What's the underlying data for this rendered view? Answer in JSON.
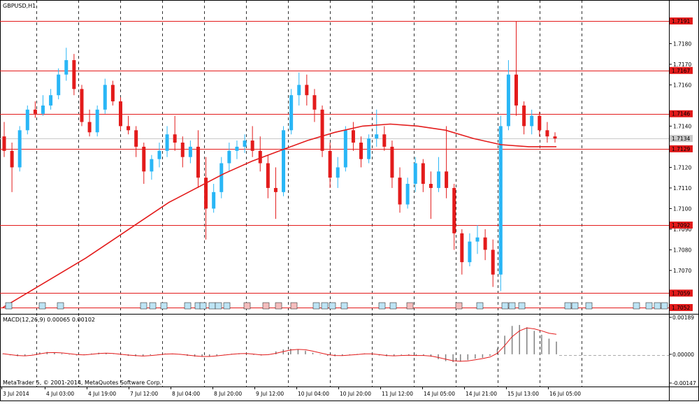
{
  "window": {
    "symbol_title": "GBPUSD,H1",
    "macd_title": "MACD(12,26,9) 0.00065 0.00102",
    "copyright": "MetaTrader 5, © 2001-2014, MetaQuotes Software Corp."
  },
  "colors": {
    "bull": "#29b6f6",
    "bear": "#e31b1b",
    "ma": "#e31b1b",
    "level_line": "#e31b1b",
    "grid": "#000000",
    "macd_hist": "#808080",
    "macd_signal": "#e31b1b",
    "event_label_blue": "#bde4f4",
    "event_label_red": "#f4bdbd"
  },
  "icons": [
    "price-label-tag",
    "event-marker-tag"
  ],
  "price_axis": {
    "labels": [
      "1.7180",
      "1.7170",
      "1.7160",
      "1.7140",
      "1.7120",
      "1.7110",
      "1.7100",
      "1.7090",
      "1.7080",
      "1.7070"
    ],
    "level_labels": [
      "1.7191",
      "1.7167",
      "1.7146",
      "1.7134",
      "1.7129",
      "1.7092",
      "1.7059",
      "1.7052"
    ]
  },
  "macd_axis": {
    "labels": [
      "0.00189",
      "0.00000",
      "-0.00147"
    ]
  },
  "time_axis": {
    "labels": [
      "3 Jul 2014",
      "4 Jul 03:00",
      "4 Jul 19:00",
      "7 Jul 12:00",
      "8 Jul 04:00",
      "8 Jul 20:00",
      "9 Jul 12:00",
      "10 Jul 04:00",
      "10 Jul 20:00",
      "11 Jul 12:00",
      "14 Jul 05:00",
      "14 Jul 21:00",
      "15 Jul 13:00",
      "16 Jul 05:00"
    ]
  },
  "chart_data": {
    "type": "candlestick",
    "symbol": "GBPUSD",
    "timeframe": "H1",
    "ylim": [
      1.705,
      1.7195
    ],
    "price_levels": [
      1.7191,
      1.7167,
      1.7146,
      1.7134,
      1.7129,
      1.7092,
      1.7059,
      1.7052
    ],
    "current_price": 1.7134,
    "candles_approx": [
      [
        1.7135,
        1.7142,
        1.7125,
        1.7128
      ],
      [
        1.7128,
        1.7132,
        1.7108,
        1.712
      ],
      [
        1.712,
        1.714,
        1.7118,
        1.7138
      ],
      [
        1.7138,
        1.715,
        1.7136,
        1.7148
      ],
      [
        1.7148,
        1.7152,
        1.7144,
        1.7146
      ],
      [
        1.7146,
        1.7155,
        1.7145,
        1.715
      ],
      [
        1.715,
        1.7158,
        1.7148,
        1.7155
      ],
      [
        1.7155,
        1.7168,
        1.7153,
        1.7165
      ],
      [
        1.7165,
        1.7178,
        1.7162,
        1.7172
      ],
      [
        1.7172,
        1.7175,
        1.7155,
        1.7158
      ],
      [
        1.7158,
        1.716,
        1.714,
        1.7142
      ],
      [
        1.7142,
        1.7148,
        1.7135,
        1.7137
      ],
      [
        1.7137,
        1.715,
        1.7135,
        1.7148
      ],
      [
        1.7148,
        1.7163,
        1.7146,
        1.716
      ],
      [
        1.716,
        1.7162,
        1.715,
        1.7152
      ],
      [
        1.7152,
        1.7154,
        1.7138,
        1.714
      ],
      [
        1.714,
        1.7145,
        1.7136,
        1.7138
      ],
      [
        1.7138,
        1.714,
        1.7125,
        1.713
      ],
      [
        1.713,
        1.7132,
        1.7112,
        1.7118
      ],
      [
        1.7118,
        1.7126,
        1.7114,
        1.7124
      ],
      [
        1.7124,
        1.7132,
        1.712,
        1.7128
      ],
      [
        1.7128,
        1.714,
        1.7125,
        1.7136
      ],
      [
        1.7136,
        1.7145,
        1.7128,
        1.7132
      ],
      [
        1.7132,
        1.7135,
        1.712,
        1.7125
      ],
      [
        1.7125,
        1.7133,
        1.7122,
        1.713
      ],
      [
        1.713,
        1.7138,
        1.711,
        1.7115
      ],
      [
        1.7115,
        1.7125,
        1.7085,
        1.71
      ],
      [
        1.71,
        1.7112,
        1.7098,
        1.7108
      ],
      [
        1.7108,
        1.7125,
        1.7105,
        1.7122
      ],
      [
        1.7122,
        1.7132,
        1.7118,
        1.7128
      ],
      [
        1.7128,
        1.7133,
        1.7124,
        1.713
      ],
      [
        1.713,
        1.7136,
        1.7127,
        1.7133
      ],
      [
        1.7133,
        1.714,
        1.7125,
        1.7128
      ],
      [
        1.7128,
        1.7135,
        1.7118,
        1.7122
      ],
      [
        1.7122,
        1.7126,
        1.7105,
        1.711
      ],
      [
        1.711,
        1.712,
        1.7095,
        1.7108
      ],
      [
        1.7108,
        1.714,
        1.7106,
        1.7138
      ],
      [
        1.7138,
        1.7158,
        1.7136,
        1.7155
      ],
      [
        1.7155,
        1.7166,
        1.715,
        1.716
      ],
      [
        1.716,
        1.7165,
        1.715,
        1.7155
      ],
      [
        1.7155,
        1.7158,
        1.7142,
        1.7148
      ],
      [
        1.7148,
        1.715,
        1.7125,
        1.7128
      ],
      [
        1.7128,
        1.7132,
        1.711,
        1.7115
      ],
      [
        1.7115,
        1.7125,
        1.711,
        1.712
      ],
      [
        1.712,
        1.714,
        1.7118,
        1.7138
      ],
      [
        1.7138,
        1.7142,
        1.7128,
        1.7132
      ],
      [
        1.7132,
        1.7135,
        1.712,
        1.7124
      ],
      [
        1.7124,
        1.7136,
        1.7122,
        1.7134
      ],
      [
        1.7134,
        1.7148,
        1.713,
        1.7136
      ],
      [
        1.7136,
        1.714,
        1.7128,
        1.713
      ],
      [
        1.713,
        1.7133,
        1.711,
        1.7115
      ],
      [
        1.7115,
        1.712,
        1.7098,
        1.7102
      ],
      [
        1.7102,
        1.7115,
        1.71,
        1.7112
      ],
      [
        1.7112,
        1.7125,
        1.7108,
        1.7122
      ],
      [
        1.7122,
        1.7124,
        1.7108,
        1.7112
      ],
      [
        1.7112,
        1.7118,
        1.7095,
        1.711
      ],
      [
        1.711,
        1.7125,
        1.7108,
        1.7118
      ],
      [
        1.7118,
        1.714,
        1.7105,
        1.711
      ],
      [
        1.711,
        1.7112,
        1.708,
        1.7088
      ],
      [
        1.7088,
        1.709,
        1.7068,
        1.7074
      ],
      [
        1.7074,
        1.7088,
        1.7072,
        1.7084
      ],
      [
        1.7084,
        1.7092,
        1.7078,
        1.7086
      ],
      [
        1.7086,
        1.709,
        1.7075,
        1.708
      ],
      [
        1.708,
        1.7085,
        1.7062,
        1.7068
      ],
      [
        1.7068,
        1.7145,
        1.706,
        1.714
      ],
      [
        1.714,
        1.7172,
        1.7138,
        1.7165
      ],
      [
        1.7165,
        1.7191,
        1.7145,
        1.715
      ],
      [
        1.715,
        1.7152,
        1.7136,
        1.714
      ],
      [
        1.714,
        1.7148,
        1.7136,
        1.7145
      ],
      [
        1.7145,
        1.7147,
        1.7135,
        1.7138
      ],
      [
        1.7138,
        1.7142,
        1.7132,
        1.7135
      ],
      [
        1.7135,
        1.7137,
        1.7132,
        1.7134
      ]
    ],
    "ma_approx": [
      1.7052,
      1.706,
      1.7068,
      1.7076,
      1.7085,
      1.7094,
      1.7103,
      1.711,
      1.7117,
      1.7123,
      1.7128,
      1.7133,
      1.7137,
      1.714,
      1.7141,
      1.714,
      1.7138,
      1.7134,
      1.7131,
      1.713,
      1.713
    ],
    "macd": {
      "ylim": [
        -0.00147,
        0.00189
      ],
      "histogram_approx": [
        2e-05,
        -5e-05,
        -0.0001,
        -8e-05,
        2e-05,
        0.0001,
        0.00012,
        8e-05,
        4e-05,
        -2e-05,
        -6e-05,
        -3e-05,
        4e-05,
        8e-05,
        6e-05,
        1e-05,
        -4e-05,
        -8e-05,
        -0.0001,
        -8e-05,
        -4e-05,
        1e-05,
        4e-05,
        3e-05,
        -2e-05,
        -8e-05,
        -0.00012,
        -0.00012,
        -0.0001,
        -6e-05,
        -1e-05,
        3e-05,
        5e-05,
        3e-05,
        -3e-05,
        -6e-05,
        1e-05,
        0.00015,
        0.00025,
        0.00028,
        0.00025,
        0.00018,
        8e-05,
        -2e-05,
        -8e-05,
        -0.0001,
        -6e-05,
        -2e-05,
        2e-05,
        4e-05,
        1e-05,
        -6e-05,
        -0.0001,
        -8e-05,
        -3e-05,
        -5e-05,
        -8e-05,
        -6e-05,
        -0.00012,
        -0.00025,
        -0.00035,
        -0.0004,
        -0.00038,
        -0.0003,
        -0.00022,
        -0.00018,
        -8e-05,
        0.0003,
        0.00095,
        0.00145,
        0.0015,
        0.00138,
        0.0012,
        0.001,
        0.0008,
        0.00065
      ],
      "signal_approx": [
        3e-05,
        -2e-05,
        -6e-05,
        -8e-05,
        -5e-05,
        2e-05,
        8e-05,
        9e-05,
        7e-05,
        3e-05,
        -1e-05,
        -3e-05,
        0.0,
        4e-05,
        6e-05,
        4e-05,
        0.0,
        -4e-05,
        -7e-05,
        -9e-05,
        -7e-05,
        -3e-05,
        1e-05,
        2e-05,
        0.0,
        -4e-05,
        -8e-05,
        -0.00011,
        -0.00011,
        -8e-05,
        -4e-05,
        0.0,
        3e-05,
        4e-05,
        1e-05,
        -3e-05,
        -2e-05,
        5e-05,
        0.00014,
        0.00022,
        0.00025,
        0.00023,
        0.00016,
        7e-05,
        -1e-05,
        -6e-05,
        -7e-05,
        -4e-05,
        -1e-05,
        2e-05,
        2e-05,
        -2e-05,
        -6e-05,
        -8e-05,
        -6e-05,
        -5e-05,
        -6e-05,
        -6e-05,
        -9e-05,
        -0.00016,
        -0.00025,
        -0.00033,
        -0.00036,
        -0.00034,
        -0.00028,
        -0.00022,
        -0.00014,
        5e-05,
        0.00045,
        0.0009,
        0.0012,
        0.00135,
        0.0013,
        0.0012,
        0.00108,
        0.00102
      ]
    }
  }
}
